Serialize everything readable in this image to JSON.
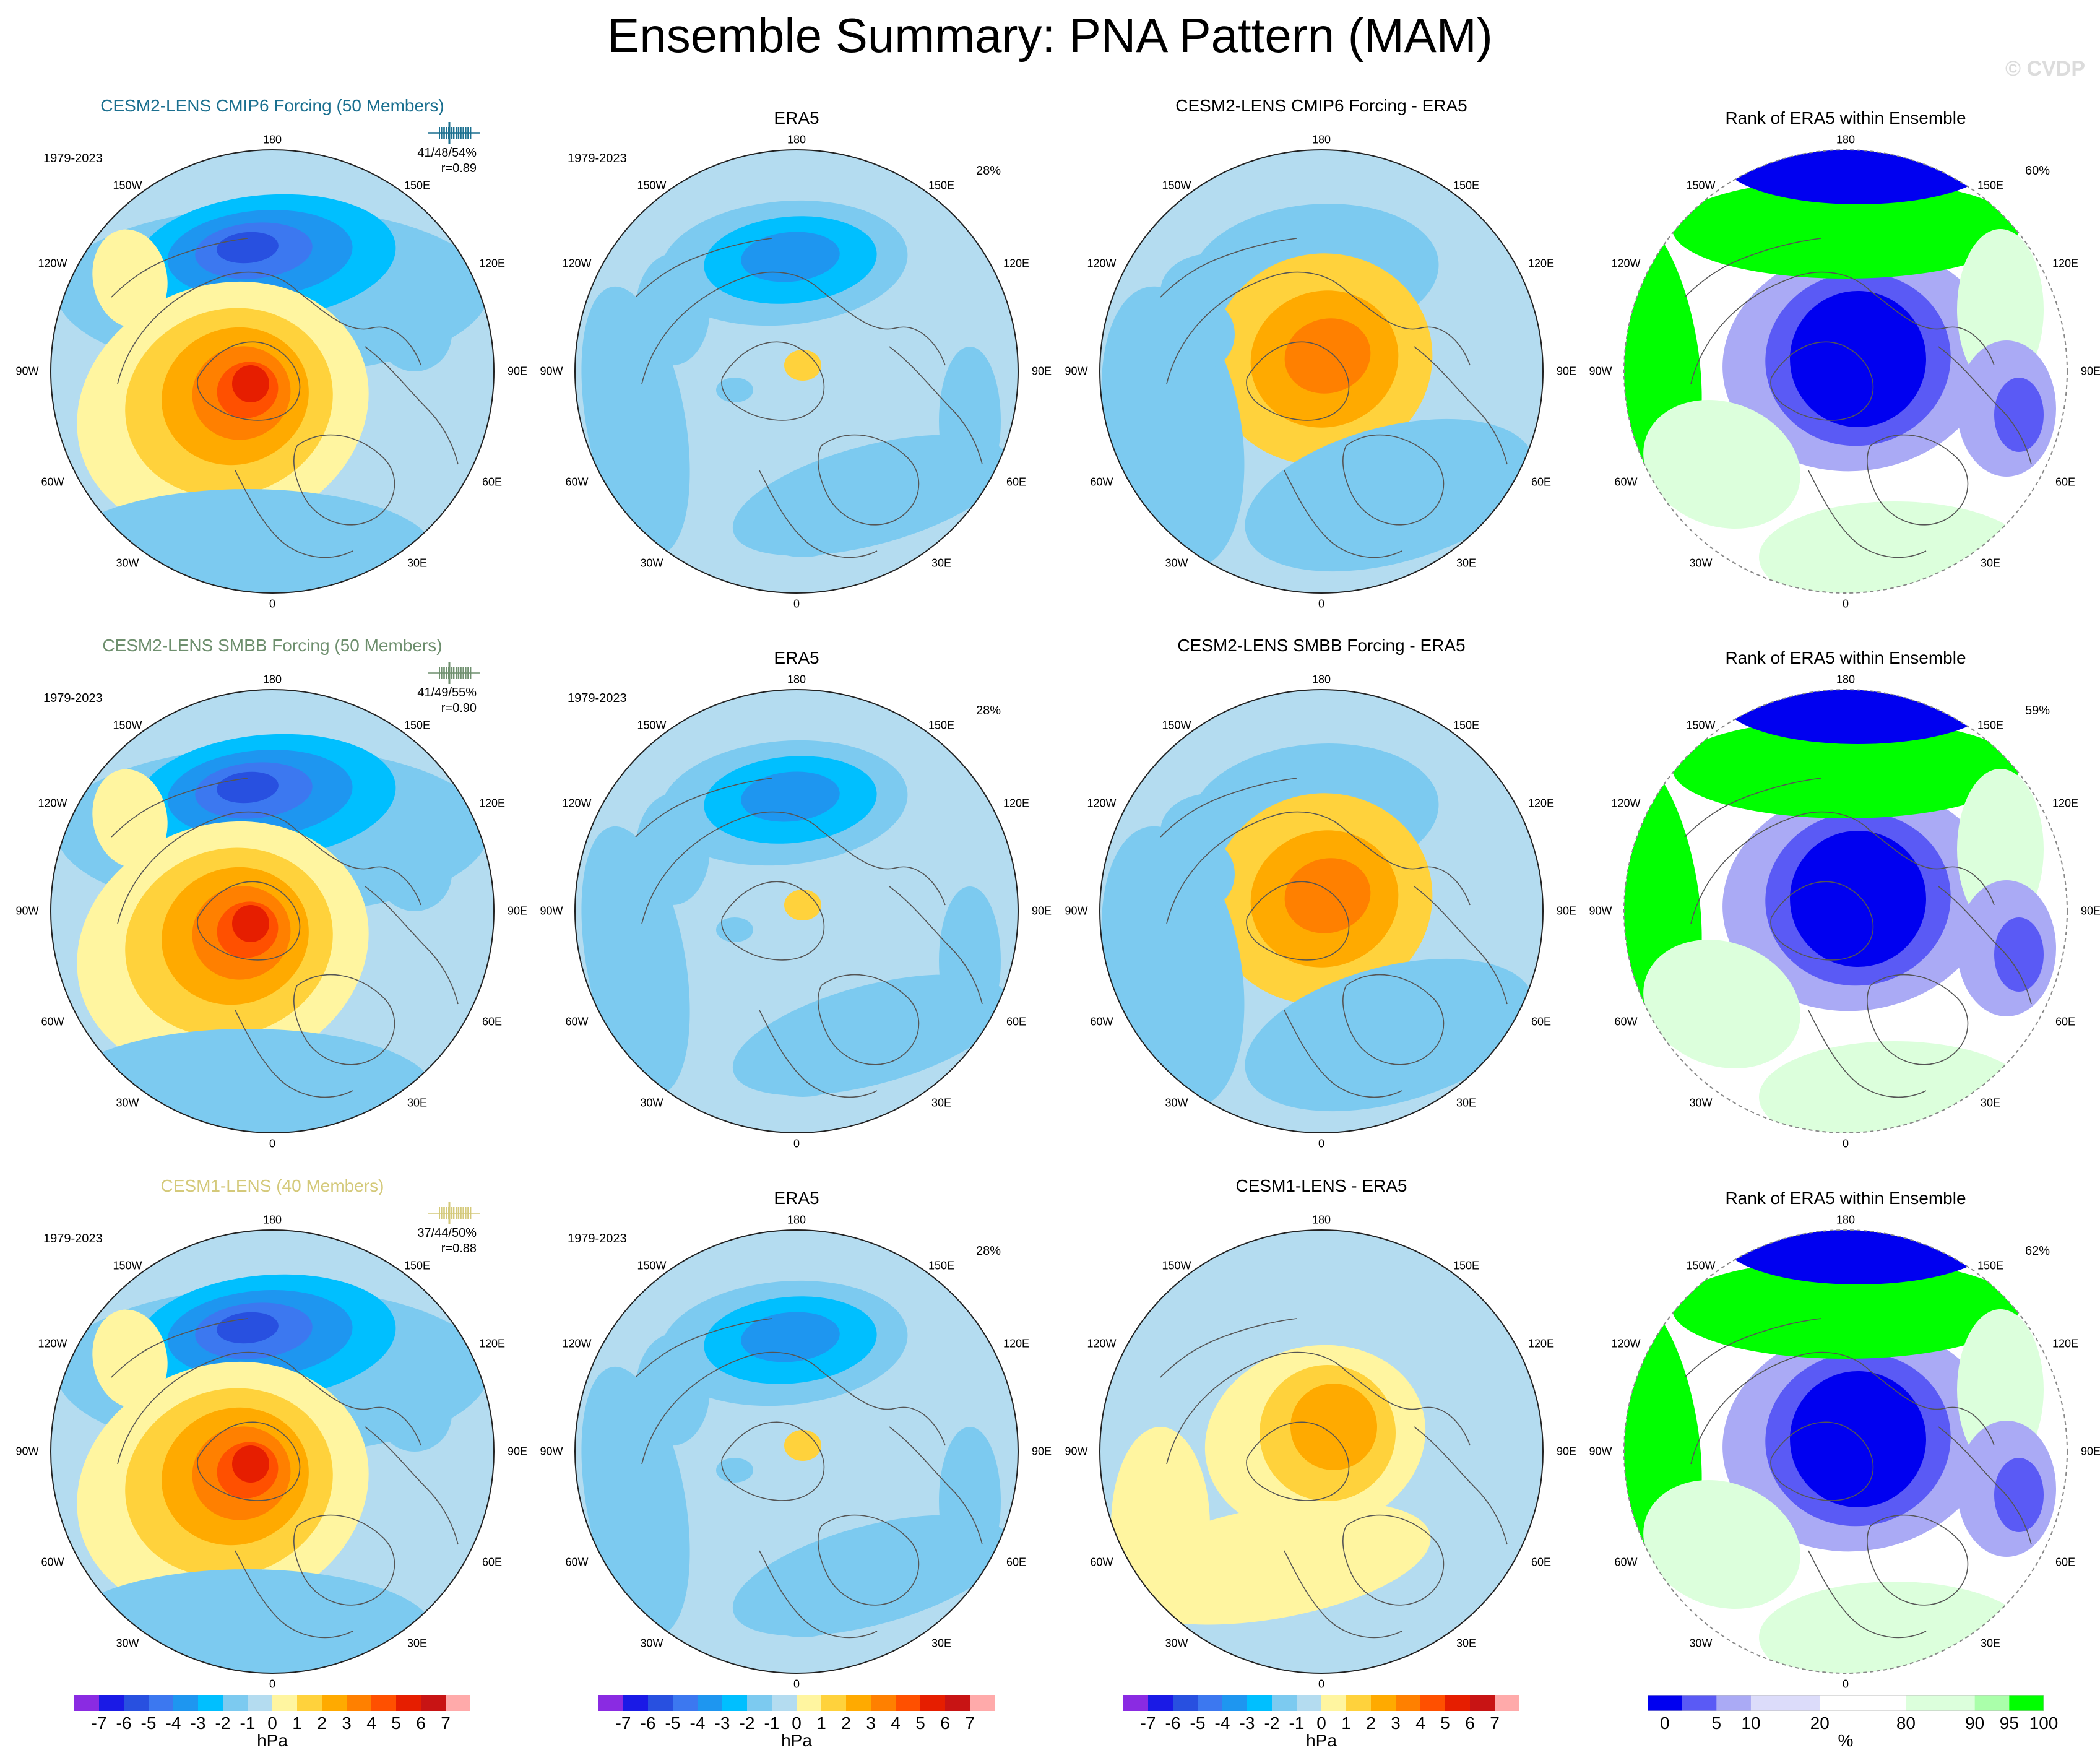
{
  "figure": {
    "title": "Ensemble Summary: PNA Pattern (MAM)",
    "watermark": "© CVDP"
  },
  "longitude_labels": {
    "top": "180",
    "bottom": "0",
    "upper_left": "150W",
    "upper_right": "150E",
    "left_upper": "120W",
    "right_upper": "120E",
    "left": "90W",
    "right": "90E",
    "left_lower": "60W",
    "right_lower": "60E",
    "lower_left": "30W",
    "lower_right": "30E"
  },
  "colors": {
    "model_1": "#1a6f8f",
    "model_2": "#6e8f6e",
    "model_3": "#d4c97a",
    "land_outline": "#555555",
    "pressure_scale": [
      "#8a2be2",
      "#1a1ae6",
      "#2850e0",
      "#3c78f0",
      "#1e96f0",
      "#00bfff",
      "#7ccaf0",
      "#b4dcf0",
      "#fff5a0",
      "#ffd23c",
      "#ffaa00",
      "#ff8000",
      "#ff5000",
      "#e61e00",
      "#c81414",
      "#ffaaaa"
    ],
    "rank_scale": [
      "#0000f0",
      "#5a5af5",
      "#aaaaf5",
      "#dcdcfa",
      "#ffffff",
      "#dcffdc",
      "#aaffaa",
      "#00ff00"
    ]
  },
  "rows": [
    {
      "model_title": "CESM2-LENS CMIP6 Forcing (50 Members)",
      "model_period": "1979-2023",
      "model_stats": [
        "41/48/54%",
        "r=0.89"
      ],
      "obs_title": "ERA5",
      "obs_period": "1979-2023",
      "obs_pct": "28%",
      "diff_title": "CESM2-LENS CMIP6 Forcing - ERA5",
      "rank_title": "Rank of ERA5 within Ensemble",
      "rank_pct": "60%"
    },
    {
      "model_title": "CESM2-LENS SMBB Forcing (50 Members)",
      "model_period": "1979-2023",
      "model_stats": [
        "41/49/55%",
        "r=0.90"
      ],
      "obs_title": "ERA5",
      "obs_period": "1979-2023",
      "obs_pct": "28%",
      "diff_title": "CESM2-LENS SMBB Forcing - ERA5",
      "rank_title": "Rank of ERA5 within Ensemble",
      "rank_pct": "59%"
    },
    {
      "model_title": "CESM1-LENS (40 Members)",
      "model_period": "1979-2023",
      "model_stats": [
        "37/44/50%",
        "r=0.88"
      ],
      "obs_title": "ERA5",
      "obs_period": "1979-2023",
      "obs_pct": "28%",
      "diff_title": "CESM1-LENS - ERA5",
      "rank_title": "Rank of ERA5 within Ensemble",
      "rank_pct": "62%"
    }
  ],
  "colorbars": {
    "pressure": {
      "ticks": [
        "-7",
        "-6",
        "-5",
        "-4",
        "-3",
        "-2",
        "-1",
        "0",
        "1",
        "2",
        "3",
        "4",
        "5",
        "6",
        "7"
      ],
      "unit": "hPa"
    },
    "rank": {
      "ticks": [
        "0",
        "5",
        "10",
        "20",
        "80",
        "90",
        "95",
        "100"
      ],
      "unit": "%"
    }
  }
}
